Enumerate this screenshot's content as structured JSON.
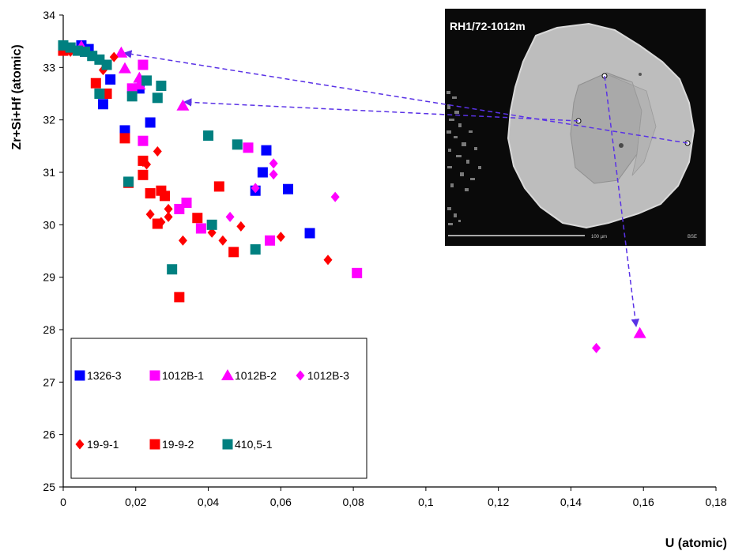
{
  "chart_data": {
    "type": "scatter",
    "title": "",
    "xlabel": "U (atomic)",
    "ylabel": "Zr+Si+Hf (atomic)",
    "xlim": [
      0,
      0.18
    ],
    "ylim": [
      25,
      34
    ],
    "x_ticks": [
      "0",
      "0,02",
      "0,04",
      "0,06",
      "0,08",
      "0,1",
      "0,12",
      "0,14",
      "0,16",
      "0,18"
    ],
    "y_ticks": [
      "25",
      "26",
      "27",
      "28",
      "29",
      "30",
      "31",
      "32",
      "33",
      "34"
    ],
    "grid": false,
    "legend_placement": "lower-left",
    "series": [
      {
        "name": "1326-3",
        "marker": "square",
        "color": "#0000ff",
        "points": [
          [
            0.005,
            33.42
          ],
          [
            0.007,
            33.35
          ],
          [
            0.011,
            32.3
          ],
          [
            0.013,
            32.77
          ],
          [
            0.017,
            31.8
          ],
          [
            0.021,
            32.6
          ],
          [
            0.024,
            31.95
          ],
          [
            0.053,
            30.65
          ],
          [
            0.055,
            31.0
          ],
          [
            0.056,
            31.42
          ],
          [
            0.062,
            30.68
          ],
          [
            0.068,
            29.84
          ]
        ]
      },
      {
        "name": "1012B-1",
        "marker": "square",
        "color": "#ff00ff",
        "points": [
          [
            0.0,
            33.38
          ],
          [
            0.006,
            33.3
          ],
          [
            0.019,
            32.6
          ],
          [
            0.022,
            33.05
          ],
          [
            0.022,
            31.6
          ],
          [
            0.032,
            30.3
          ],
          [
            0.034,
            30.42
          ],
          [
            0.038,
            29.93
          ],
          [
            0.051,
            31.47
          ],
          [
            0.057,
            29.7
          ],
          [
            0.081,
            29.08
          ]
        ]
      },
      {
        "name": "1012B-2",
        "marker": "triangle",
        "color": "#ff00ff",
        "points": [
          [
            0.005,
            33.4
          ],
          [
            0.016,
            33.28
          ],
          [
            0.017,
            32.98
          ],
          [
            0.021,
            32.8
          ],
          [
            0.021,
            32.67
          ],
          [
            0.033,
            32.27
          ],
          [
            0.159,
            27.93
          ]
        ]
      },
      {
        "name": "1012B-3",
        "marker": "diamond",
        "color": "#ff00ff",
        "points": [
          [
            0.046,
            30.15
          ],
          [
            0.053,
            30.7
          ],
          [
            0.058,
            31.17
          ],
          [
            0.058,
            30.96
          ],
          [
            0.075,
            30.53
          ],
          [
            0.147,
            27.65
          ]
        ]
      },
      {
        "name": "19-9-1",
        "marker": "diamond",
        "color": "#ff0000",
        "points": [
          [
            0.002,
            33.3
          ],
          [
            0.011,
            32.95
          ],
          [
            0.014,
            33.2
          ],
          [
            0.022,
            31.2
          ],
          [
            0.023,
            31.15
          ],
          [
            0.024,
            30.2
          ],
          [
            0.026,
            31.4
          ],
          [
            0.027,
            30.05
          ],
          [
            0.029,
            30.3
          ],
          [
            0.029,
            30.15
          ],
          [
            0.033,
            29.7
          ],
          [
            0.041,
            29.85
          ],
          [
            0.044,
            29.7
          ],
          [
            0.049,
            29.97
          ],
          [
            0.06,
            29.77
          ],
          [
            0.073,
            29.33
          ]
        ]
      },
      {
        "name": "19-9-2",
        "marker": "square",
        "color": "#ff0000",
        "points": [
          [
            0.0,
            33.32
          ],
          [
            0.009,
            32.7
          ],
          [
            0.012,
            32.5
          ],
          [
            0.017,
            31.65
          ],
          [
            0.018,
            30.8
          ],
          [
            0.022,
            31.22
          ],
          [
            0.022,
            30.95
          ],
          [
            0.024,
            30.6
          ],
          [
            0.026,
            30.02
          ],
          [
            0.027,
            30.65
          ],
          [
            0.028,
            30.55
          ],
          [
            0.032,
            28.62
          ],
          [
            0.037,
            30.13
          ],
          [
            0.043,
            30.73
          ],
          [
            0.047,
            29.48
          ]
        ]
      },
      {
        "name": "410,5-1",
        "marker": "square",
        "color": "#008080",
        "points": [
          [
            0.0,
            33.42
          ],
          [
            0.002,
            33.38
          ],
          [
            0.004,
            33.32
          ],
          [
            0.006,
            33.3
          ],
          [
            0.008,
            33.22
          ],
          [
            0.01,
            33.15
          ],
          [
            0.012,
            33.05
          ],
          [
            0.01,
            32.5
          ],
          [
            0.018,
            30.82
          ],
          [
            0.019,
            32.45
          ],
          [
            0.023,
            32.75
          ],
          [
            0.026,
            32.42
          ],
          [
            0.027,
            32.65
          ],
          [
            0.03,
            29.15
          ],
          [
            0.04,
            31.7
          ],
          [
            0.041,
            30.0
          ],
          [
            0.048,
            31.53
          ],
          [
            0.053,
            29.53
          ]
        ]
      }
    ]
  },
  "inset": {
    "label": "RH1/72-1012m",
    "scale_text": "100 µm",
    "detector_text": "BSE"
  },
  "colors": {
    "arrow": "#5a32e6",
    "inset_background": "#0a0a0a"
  }
}
